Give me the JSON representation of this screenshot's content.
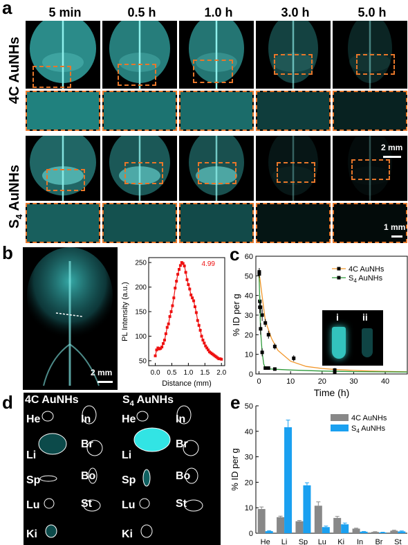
{
  "panel_a": {
    "letter": "a",
    "time_labels": [
      "5 min",
      "0.5 h",
      "1.0 h",
      "3.0 h",
      "5.0 h"
    ],
    "row_labels": [
      "4C AuNHs",
      "S4 AuNHs"
    ],
    "row_label_parts": [
      {
        "main": "4C AuNHs"
      },
      {
        "pre": "S",
        "sub": "4",
        "post": " AuNHs"
      }
    ],
    "scale_top": "2 mm",
    "scale_bottom": "1 mm"
  },
  "panel_b": {
    "letter": "b",
    "scale": "2 mm",
    "chart_data": {
      "type": "line",
      "xlabel": "Distance (mm)",
      "ylabel": "PL Intensity (a.u.)",
      "xlim": [
        -0.2,
        2.1
      ],
      "ylim": [
        40,
        260
      ],
      "xticks": [
        "0.0",
        "0.5",
        "1.0",
        "1.5",
        "2.0"
      ],
      "yticks": [
        "50",
        "100",
        "150",
        "200",
        "250"
      ],
      "annotation": "4.99",
      "x": [
        0.0,
        0.04,
        0.08,
        0.12,
        0.16,
        0.2,
        0.24,
        0.28,
        0.32,
        0.36,
        0.4,
        0.44,
        0.48,
        0.52,
        0.56,
        0.6,
        0.64,
        0.68,
        0.72,
        0.76,
        0.8,
        0.84,
        0.88,
        0.92,
        0.96,
        1.0,
        1.04,
        1.08,
        1.12,
        1.16,
        1.2,
        1.24,
        1.28,
        1.32,
        1.36,
        1.4,
        1.44,
        1.48,
        1.52,
        1.56,
        1.6,
        1.64,
        1.68,
        1.72,
        1.76,
        1.8,
        1.84,
        1.88,
        1.92,
        1.96,
        2.0
      ],
      "y": [
        60,
        72,
        76,
        74,
        75,
        78,
        85,
        92,
        105,
        118,
        125,
        140,
        150,
        162,
        178,
        198,
        212,
        226,
        236,
        244,
        250,
        248,
        243,
        230,
        215,
        205,
        196,
        184,
        178,
        172,
        160,
        148,
        132,
        122,
        112,
        100,
        92,
        86,
        80,
        76,
        72,
        68,
        66,
        64,
        62,
        60,
        58,
        56,
        54,
        54,
        53
      ]
    }
  },
  "panel_c": {
    "letter": "c",
    "inset_labels": [
      "i",
      "ii"
    ],
    "chart_data": {
      "type": "line",
      "xlabel": "Time (h)",
      "ylabel": "% ID per g",
      "xlim": [
        -1,
        47
      ],
      "ylim": [
        0,
        60
      ],
      "xticks": [
        "0",
        "10",
        "20",
        "30",
        "40"
      ],
      "yticks": [
        "0",
        "10",
        "20",
        "30",
        "40",
        "50",
        "60"
      ],
      "series": [
        {
          "name": "4C AuNHs",
          "color": "#f2962a",
          "x": [
            0.08,
            0.25,
            0.5,
            1,
            2,
            3,
            5,
            11,
            24
          ],
          "y": [
            52,
            37,
            34,
            30,
            26,
            20,
            14,
            8,
            2
          ],
          "err": [
            2,
            3,
            3,
            3,
            2,
            2,
            1.5,
            1.5,
            1
          ],
          "fit_x": [
            0,
            2,
            4,
            6,
            10,
            15,
            20,
            25,
            30,
            35,
            40,
            47
          ],
          "fit_y": [
            52,
            27,
            18,
            12,
            6.5,
            3.8,
            2.8,
            2.2,
            1.8,
            1.5,
            1.3,
            1.1
          ]
        },
        {
          "name": "S4 AuNHs",
          "color": "#2e9a3a",
          "x": [
            0.08,
            0.25,
            0.5,
            1,
            2,
            3,
            5,
            24
          ],
          "y": [
            51,
            34,
            23,
            11,
            3,
            3,
            2.5,
            1
          ],
          "err": [
            2,
            3,
            3,
            2,
            0.5,
            0.5,
            0.5,
            0.3
          ],
          "fit_x": [
            0,
            0.5,
            1,
            1.5,
            2,
            3,
            5,
            10,
            20,
            30,
            47
          ],
          "fit_y": [
            51,
            22,
            11,
            5,
            3,
            2.6,
            2.4,
            2.0,
            1.5,
            1.2,
            1.0
          ]
        }
      ]
    }
  },
  "panel_d": {
    "letter": "d",
    "headers": [
      "4C AuNHs",
      "S4 AuNHs"
    ],
    "organs_left": [
      "He",
      "Li",
      "Sp",
      "Lu",
      "Ki"
    ],
    "organs_right": [
      "In",
      "Br",
      "Bo",
      "St"
    ]
  },
  "panel_e": {
    "letter": "e",
    "chart_data": {
      "type": "bar",
      "ylabel": "% ID per g",
      "ylim": [
        0,
        50
      ],
      "yticks": [
        "0",
        "10",
        "20",
        "30",
        "40",
        "50"
      ],
      "categories": [
        "He",
        "Li",
        "Sp",
        "Lu",
        "Ki",
        "In",
        "Br",
        "St"
      ],
      "series": [
        {
          "name": "4C AuNHs",
          "color": "#888888",
          "values": [
            9.5,
            6.3,
            4.7,
            10.8,
            6.0,
            1.8,
            0.5,
            1.0
          ],
          "err": [
            0.8,
            0.4,
            0.3,
            1.5,
            0.6,
            0.2,
            0.1,
            0.2
          ]
        },
        {
          "name": "S4 AuNHs",
          "color": "#1aa0f0",
          "values": [
            0.8,
            41.6,
            18.8,
            2.4,
            3.5,
            0.6,
            0.3,
            0.7
          ],
          "err": [
            0.2,
            2.8,
            1.0,
            0.4,
            0.5,
            0.1,
            0.1,
            0.2
          ]
        }
      ]
    }
  }
}
